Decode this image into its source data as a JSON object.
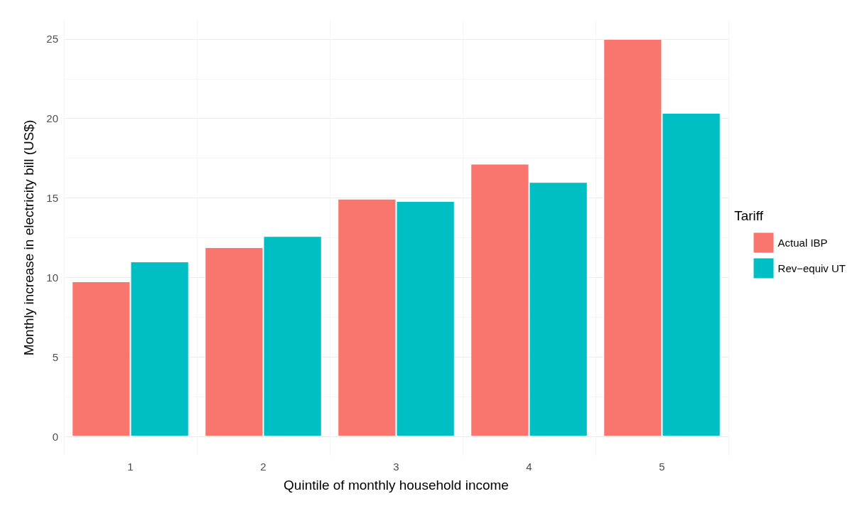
{
  "chart_data": {
    "type": "bar",
    "xlabel": "Quintile of monthly household income",
    "ylabel": "Monthly increase in electricity bill (US$)",
    "legend_title": "Tariff",
    "categories": [
      "1",
      "2",
      "3",
      "4",
      "5"
    ],
    "series": [
      {
        "name": "Actual IBP",
        "color": "#f8766d",
        "values": [
          9.75,
          11.9,
          14.95,
          17.15,
          25.0
        ]
      },
      {
        "name": "Rev−equiv UT",
        "color": "#00bfc4",
        "values": [
          11.0,
          12.6,
          14.8,
          16.0,
          20.35
        ]
      }
    ],
    "ylim": [
      -1.2,
      26.2
    ],
    "yticks": [
      0,
      5,
      10,
      15,
      20,
      25
    ],
    "grid": true,
    "legend": "right"
  }
}
